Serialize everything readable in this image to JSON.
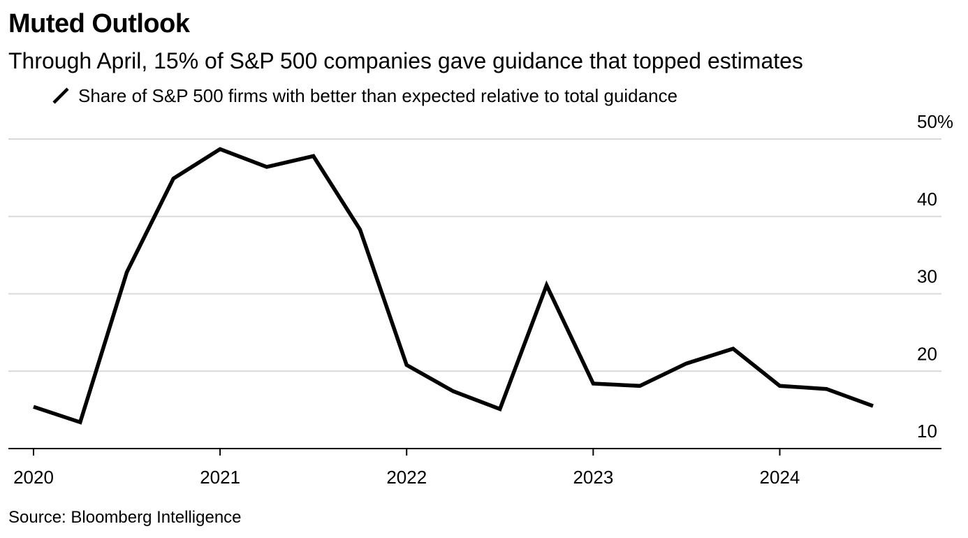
{
  "title": "Muted Outlook",
  "subtitle": "Through April, 15% of S&P 500 companies gave guidance that topped estimates",
  "source": "Source: Bloomberg Intelligence",
  "chart_data": {
    "type": "line",
    "title": "Muted Outlook",
    "subtitle": "Through April, 15% of S&P 500 companies gave guidance that topped estimates",
    "xlabel": "",
    "ylabel": "",
    "x": [
      "2020-Q1",
      "2020-Q2",
      "2020-Q3",
      "2020-Q4",
      "2021-Q1",
      "2021-Q2",
      "2021-Q3",
      "2021-Q4",
      "2022-Q1",
      "2022-Q2",
      "2022-Q3",
      "2022-Q4",
      "2023-Q1",
      "2023-Q2",
      "2023-Q3",
      "2023-Q4",
      "2024-Q1",
      "2024-Q2",
      "2024-Q3"
    ],
    "series": [
      {
        "name": "Share of S&P 500 firms with better than expected relative to total guidance",
        "color": "#000000",
        "values": [
          15.4,
          13.4,
          32.8,
          44.9,
          48.7,
          46.4,
          47.8,
          38.3,
          20.8,
          17.4,
          15.1,
          31.1,
          18.4,
          18.1,
          21.0,
          22.9,
          18.1,
          17.7,
          15.5
        ]
      }
    ],
    "x_ticks": [
      "2020",
      "2021",
      "2022",
      "2023",
      "2024"
    ],
    "y_ticks": [
      "10",
      "20",
      "30",
      "40",
      "50%"
    ],
    "y_tick_values": [
      10,
      20,
      30,
      40,
      50
    ],
    "ylim": [
      10,
      50
    ],
    "grid": true,
    "y_axis_position": "right",
    "legend": "top-left"
  }
}
